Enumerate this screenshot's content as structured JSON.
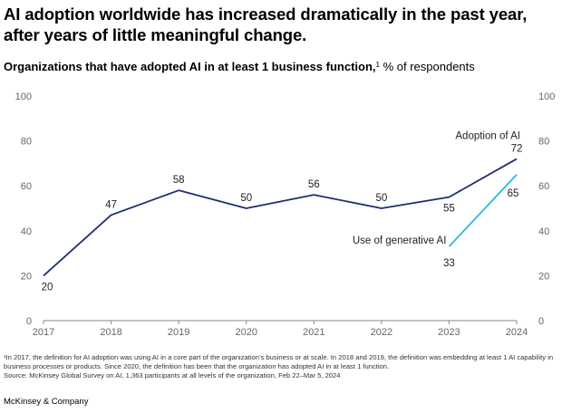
{
  "headline": "AI adoption worldwide has increased dramatically in the past year, after years of little meaningful change.",
  "colors": {
    "adoption": "#1f2f6e",
    "generative": "#2ab7e6",
    "axis": "#888888",
    "grid": "#dddddd",
    "text": "#666666"
  },
  "chart_data": {
    "type": "line",
    "title_bold": "Organizations that have adopted AI in at least 1 business function,",
    "title_sup": "1",
    "title_rest": " % of respondents",
    "x": [
      "2017",
      "2018",
      "2019",
      "2020",
      "2021",
      "2022",
      "2023",
      "2024"
    ],
    "ylim": [
      0,
      100
    ],
    "yticks": [
      "0",
      "20",
      "40",
      "60",
      "80",
      "100"
    ],
    "grid": false,
    "series": [
      {
        "name": "Adoption of AI",
        "x": [
          "2017",
          "2018",
          "2019",
          "2020",
          "2021",
          "2022",
          "2023",
          "2024"
        ],
        "values": [
          20,
          47,
          58,
          50,
          56,
          50,
          55,
          72
        ],
        "labels": [
          "20",
          "47",
          "58",
          "50",
          "56",
          "50",
          "55",
          "72"
        ]
      },
      {
        "name": "Use of generative AI",
        "x": [
          "2023",
          "2024"
        ],
        "values": [
          33,
          65
        ],
        "labels": [
          "33",
          "65"
        ]
      }
    ]
  },
  "footnote": "¹In 2017, the definition for AI adoption was using AI in a core part of the organization’s business or at scale. In 2018 and 2019, the definition was embedding at least 1 AI capability in business processes or products. Since 2020, the definition has been that the organization has adopted AI in at least 1 function.",
  "source": "Source: McKinsey Global Survey on AI, 1,363 participants at all levels of the organization, Feb 22–Mar 5, 2024",
  "brand": "McKinsey & Company"
}
